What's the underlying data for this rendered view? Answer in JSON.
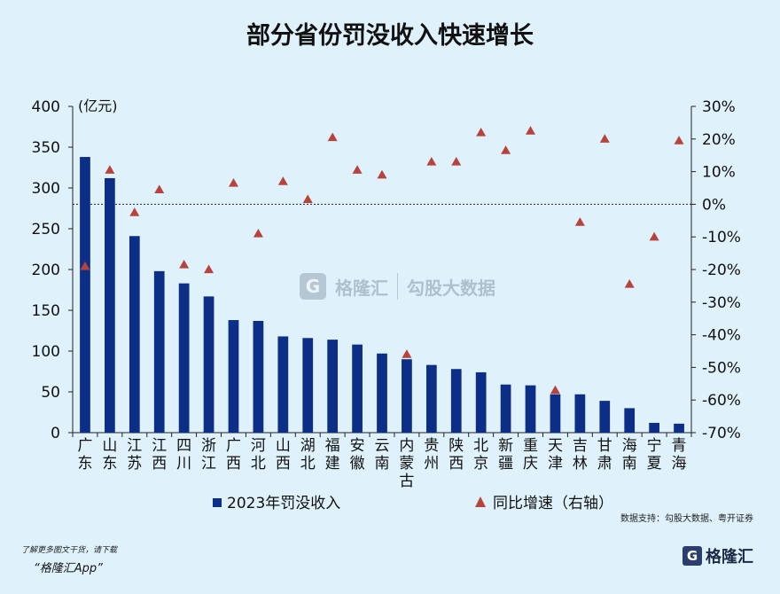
{
  "title": "部分省份罚没收入快速增长",
  "chart_data": {
    "type": "bar",
    "categories": [
      "广东",
      "山东",
      "江苏",
      "江西",
      "四川",
      "浙江",
      "广西",
      "河北",
      "山西",
      "湖北",
      "福建",
      "安徽",
      "云南",
      "内蒙古",
      "贵州",
      "陕西",
      "北京",
      "新疆",
      "重庆",
      "天津",
      "吉林",
      "甘肃",
      "海南",
      "宁夏",
      "青海"
    ],
    "series": [
      {
        "name": "2023年罚没收入",
        "kind": "bar",
        "axis": "left",
        "color": "#0d2e86",
        "values": [
          338,
          312,
          241,
          198,
          183,
          167,
          138,
          137,
          118,
          116,
          114,
          108,
          97,
          90,
          83,
          78,
          74,
          59,
          58,
          47,
          47,
          39,
          30,
          12,
          11
        ]
      },
      {
        "name": "同比增速（右轴）",
        "kind": "scatter",
        "axis": "right",
        "color": "#b8433d",
        "marker": "triangle",
        "values": [
          -19,
          10.5,
          -2.5,
          4.5,
          -18.5,
          -20,
          6.5,
          -9,
          7,
          1.5,
          20.5,
          10.5,
          9,
          -46,
          13,
          13,
          22,
          16.5,
          22.5,
          -57,
          -5.5,
          20,
          -24.5,
          -10,
          19.5
        ]
      }
    ],
    "ylabel_left": "(亿元)",
    "ylim_left": [
      0,
      400
    ],
    "yticks_left": [
      0,
      50,
      100,
      150,
      200,
      250,
      300,
      350,
      400
    ],
    "ylim_right": [
      -70,
      30
    ],
    "yticks_right": [
      "-70%",
      "-60%",
      "-50%",
      "-40%",
      "-30%",
      "-20%",
      "-10%",
      "0%",
      "10%",
      "20%",
      "30%"
    ],
    "zero_line": "dotted",
    "legend_position": "bottom"
  },
  "footer": {
    "source": "数据支持：勾股大数据、粤开证券",
    "download_text": "了解更多图文干货，请下载",
    "app_name": "“格隆汇App”",
    "logo_letter": "G",
    "logo_name": "格隆汇"
  },
  "watermark": {
    "logo_letter": "G",
    "brand1": "格隆汇",
    "brand2": "勾股大数据"
  }
}
